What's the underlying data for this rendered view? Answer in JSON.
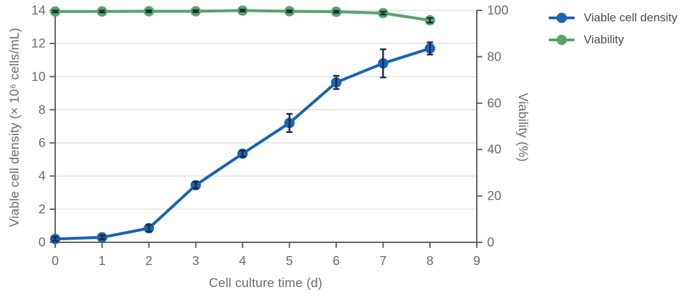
{
  "chart_data": {
    "type": "line",
    "x": [
      0,
      1,
      2,
      3,
      4,
      5,
      6,
      7,
      8
    ],
    "series": [
      {
        "name": "Viable cell density",
        "axis": "left",
        "color": "#1b64b0",
        "values": [
          0.2,
          0.3,
          0.85,
          3.45,
          5.35,
          7.2,
          9.65,
          10.8,
          11.7
        ],
        "errors": [
          0.12,
          0.12,
          0.2,
          0.2,
          0.18,
          0.55,
          0.4,
          0.85,
          0.37
        ]
      },
      {
        "name": "Viability",
        "axis": "right",
        "color": "#57a568",
        "values": [
          99.5,
          99.5,
          99.6,
          99.6,
          99.9,
          99.6,
          99.4,
          98.8,
          95.7
        ],
        "errors": [
          0.4,
          0.4,
          0.4,
          0.4,
          0.4,
          0.4,
          0.4,
          0.6,
          1.0
        ]
      }
    ],
    "xlabel": "Cell culture time (d)",
    "ylabel_left": "Viable cell density (× 10⁶ cells/mL)",
    "ylabel_right": "Viability (%)",
    "xlim": [
      0,
      9
    ],
    "x_ticks": [
      0,
      1,
      2,
      3,
      4,
      5,
      6,
      7,
      8,
      9
    ],
    "ylim_left": [
      0,
      14
    ],
    "y_ticks_left": [
      0,
      2,
      4,
      6,
      8,
      10,
      12,
      14
    ],
    "ylim_right": [
      0,
      100
    ],
    "y_ticks_right": [
      0,
      20,
      40,
      60,
      80,
      100
    ],
    "grid": "horizontal",
    "legend_position": "top-right-outside",
    "style": {
      "grid_color": "#dcdcdc",
      "axis_color": "#606060",
      "tick_label_color": "#6b6b6b",
      "error_bar_color": "#1b2547",
      "background": "#ffffff"
    }
  }
}
